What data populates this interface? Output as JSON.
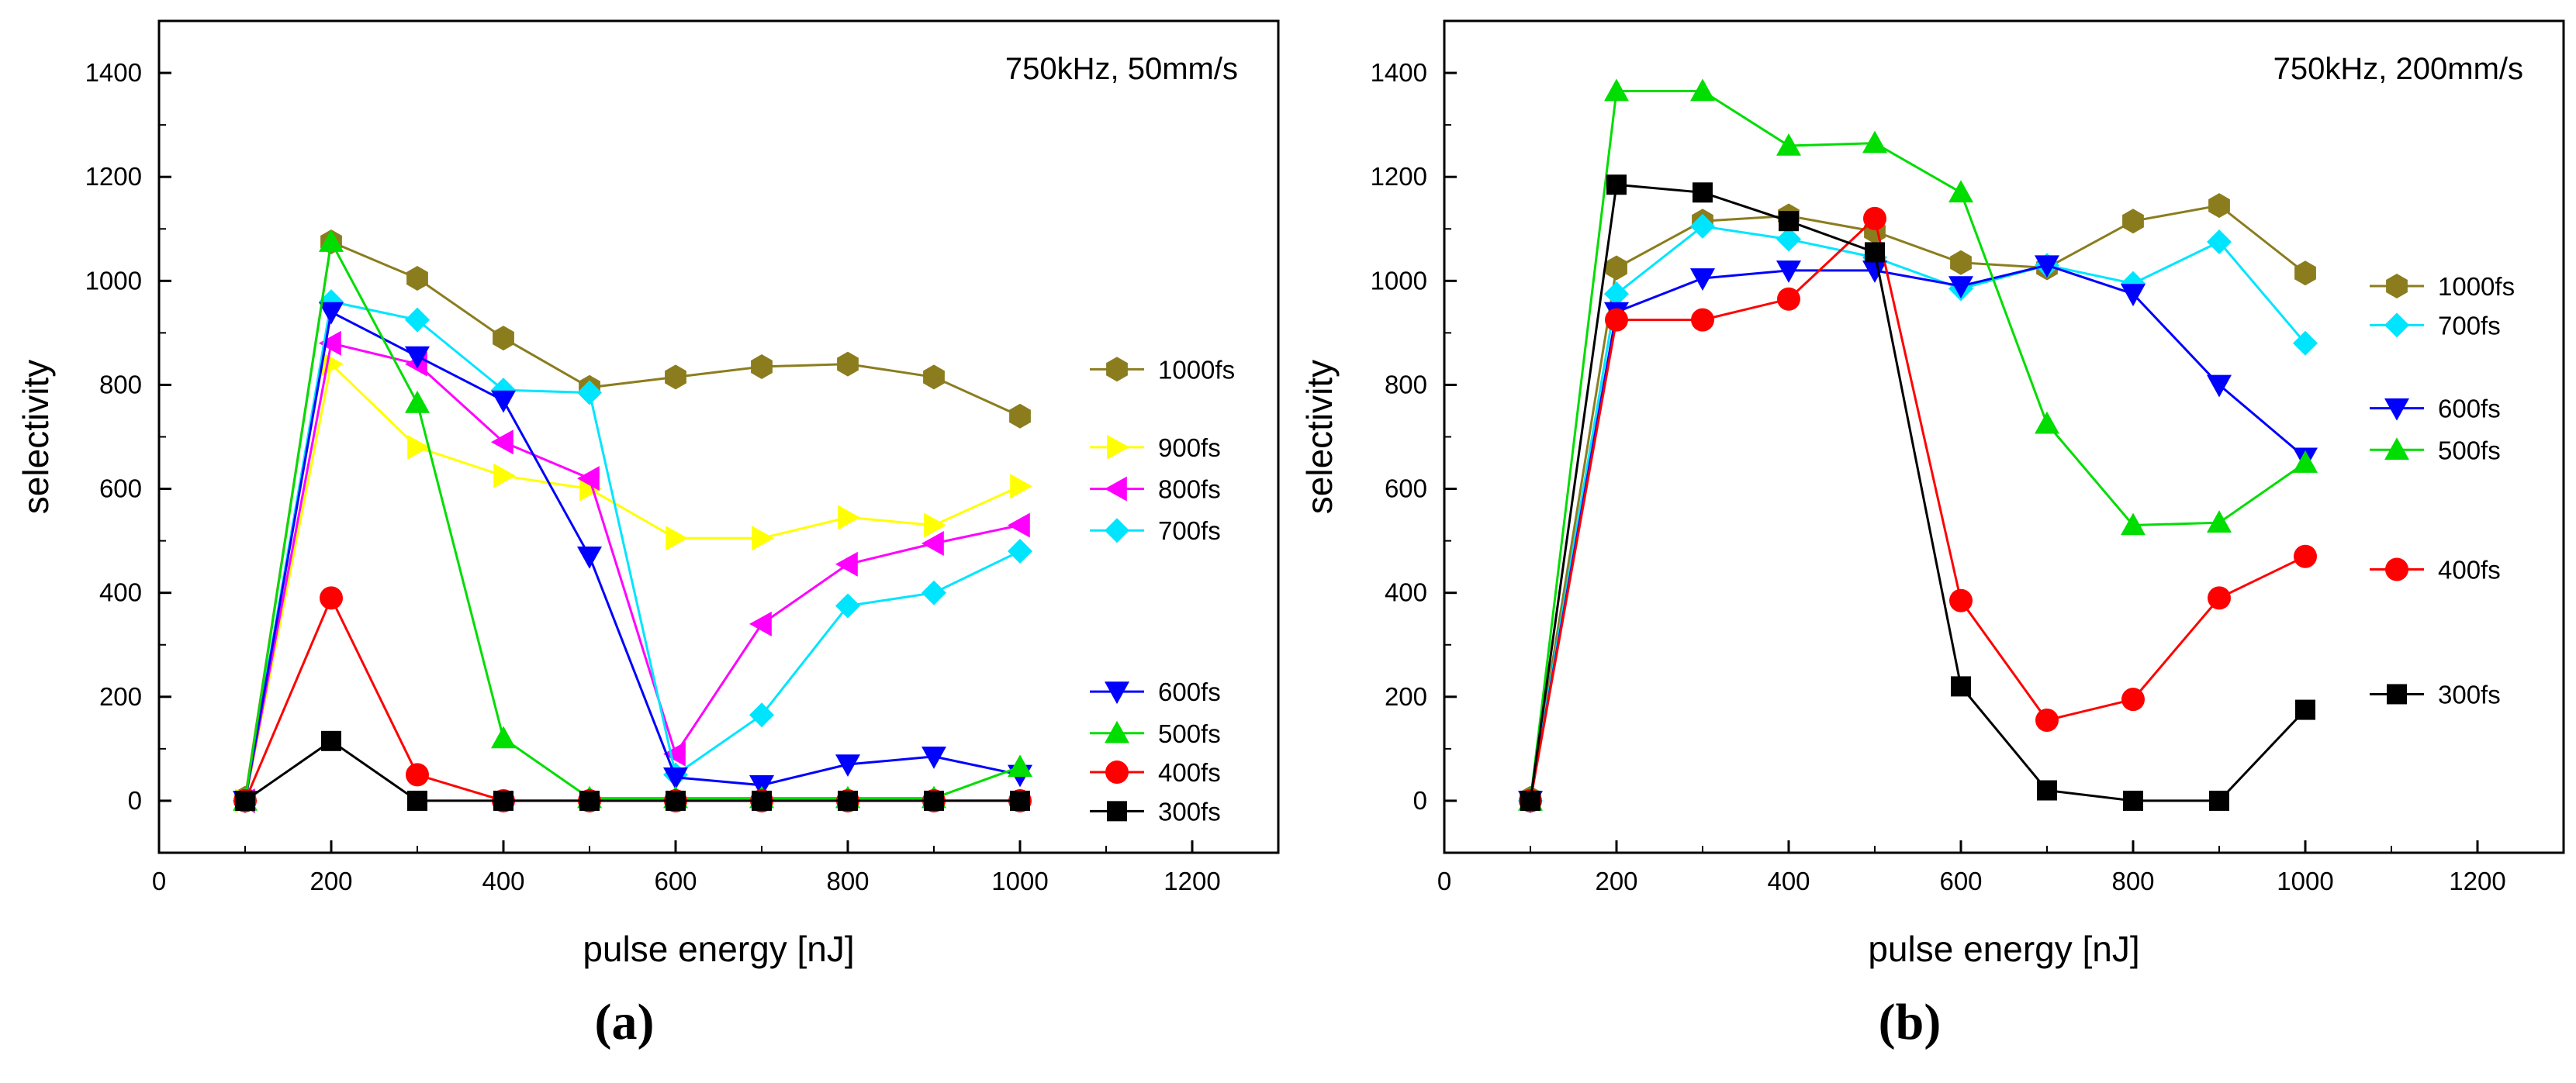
{
  "chart_data": [
    {
      "type": "line",
      "caption": "(a)",
      "title": "750kHz, 50mm/s",
      "xlabel": "pulse energy [nJ]",
      "ylabel": "selectivity",
      "xlim": [
        0,
        1300
      ],
      "ylim": [
        -100,
        1500
      ],
      "xticks": [
        0,
        200,
        400,
        600,
        800,
        1000,
        1200
      ],
      "yticks": [
        0,
        200,
        400,
        600,
        800,
        1000,
        1200,
        1400
      ],
      "xtick_labels": [
        "0",
        "200",
        "400",
        "600",
        "800",
        "1000",
        "1200"
      ],
      "ytick_labels": [
        "0",
        "200",
        "400",
        "600",
        "800",
        "1000",
        "1200",
        "1400"
      ],
      "x": [
        100,
        200,
        300,
        400,
        500,
        600,
        700,
        800,
        900,
        1000
      ],
      "legend_position": "right",
      "series": [
        {
          "name": "1000fs",
          "color": "#8b7d1e",
          "marker": "hexagon",
          "values": [
            5,
            1075,
            1005,
            890,
            795,
            815,
            835,
            840,
            815,
            740
          ],
          "legend_y": 830
        },
        {
          "name": "900fs",
          "color": "#ffff00",
          "marker": "triangle-right",
          "values": [
            0,
            840,
            680,
            625,
            600,
            505,
            505,
            545,
            530,
            605
          ],
          "legend_y": 680
        },
        {
          "name": "800fs",
          "color": "#ff00ff",
          "marker": "triangle-left",
          "values": [
            0,
            880,
            840,
            690,
            620,
            90,
            340,
            455,
            495,
            530
          ],
          "legend_y": 600
        },
        {
          "name": "700fs",
          "color": "#00e5ff",
          "marker": "diamond",
          "values": [
            0,
            960,
            925,
            790,
            785,
            50,
            165,
            375,
            400,
            480
          ],
          "legend_y": 520
        },
        {
          "name": "600fs",
          "color": "#0000ff",
          "marker": "triangle-down",
          "values": [
            0,
            940,
            855,
            770,
            470,
            45,
            30,
            70,
            85,
            50
          ],
          "legend_y": 210
        },
        {
          "name": "500fs",
          "color": "#00dd00",
          "marker": "triangle-up",
          "values": [
            0,
            1075,
            765,
            120,
            5,
            5,
            5,
            5,
            5,
            65
          ],
          "legend_y": 130
        },
        {
          "name": "400fs",
          "color": "#ff0000",
          "marker": "circle",
          "values": [
            0,
            390,
            50,
            0,
            0,
            0,
            0,
            0,
            0,
            0
          ],
          "legend_y": 55
        },
        {
          "name": "300fs",
          "color": "#000000",
          "marker": "square",
          "values": [
            0,
            115,
            0,
            0,
            0,
            0,
            0,
            0,
            0,
            0
          ],
          "legend_y": -20
        }
      ]
    },
    {
      "type": "line",
      "caption": "(b)",
      "title": "750kHz, 200mm/s",
      "xlabel": "pulse energy [nJ]",
      "ylabel": "selectivity",
      "xlim": [
        0,
        1300
      ],
      "ylim": [
        -100,
        1500
      ],
      "xticks": [
        0,
        200,
        400,
        600,
        800,
        1000,
        1200
      ],
      "yticks": [
        0,
        200,
        400,
        600,
        800,
        1000,
        1200,
        1400
      ],
      "xtick_labels": [
        "0",
        "200",
        "400",
        "600",
        "800",
        "1000",
        "1200"
      ],
      "ytick_labels": [
        "0",
        "200",
        "400",
        "600",
        "800",
        "1000",
        "1200",
        "1400"
      ],
      "x": [
        100,
        200,
        300,
        400,
        500,
        600,
        700,
        800,
        900,
        1000
      ],
      "legend_position": "right",
      "series": [
        {
          "name": "1000fs",
          "color": "#8b7d1e",
          "marker": "hexagon",
          "values": [
            5,
            1025,
            1115,
            1125,
            1095,
            1035,
            1025,
            1115,
            1145,
            1015
          ],
          "legend_y": 990
        },
        {
          "name": "700fs",
          "color": "#00e5ff",
          "marker": "diamond",
          "values": [
            0,
            975,
            1105,
            1080,
            1045,
            985,
            1030,
            995,
            1075,
            880
          ],
          "legend_y": 915
        },
        {
          "name": "600fs",
          "color": "#0000ff",
          "marker": "triangle-down",
          "values": [
            0,
            940,
            1005,
            1020,
            1020,
            990,
            1030,
            975,
            800,
            660
          ],
          "legend_y": 755
        },
        {
          "name": "500fs",
          "color": "#00dd00",
          "marker": "triangle-up",
          "values": [
            0,
            1365,
            1365,
            1260,
            1265,
            1170,
            725,
            530,
            535,
            650
          ],
          "legend_y": 675
        },
        {
          "name": "400fs",
          "color": "#ff0000",
          "marker": "circle",
          "values": [
            0,
            925,
            925,
            965,
            1120,
            385,
            155,
            195,
            390,
            470
          ],
          "legend_y": 445
        },
        {
          "name": "300fs",
          "color": "#000000",
          "marker": "square",
          "values": [
            0,
            1185,
            1170,
            1115,
            1055,
            220,
            20,
            0,
            0,
            175
          ],
          "legend_y": 205
        }
      ]
    }
  ]
}
